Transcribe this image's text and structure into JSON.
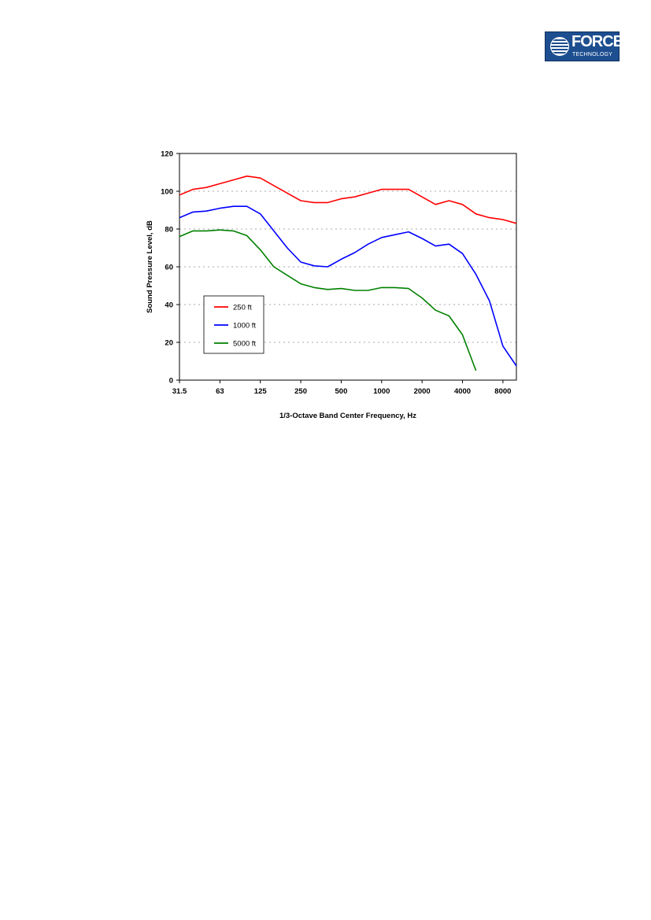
{
  "logo": {
    "word": "FORCE",
    "sub": "TECHNOLOGY"
  },
  "chart_data": {
    "type": "line",
    "xlabel": "1/3-Octave Band Center Frequency, Hz",
    "ylabel": "Sound Pressure Level, dB",
    "ylim": [
      0,
      120
    ],
    "yticks": [
      "0",
      "20",
      "40",
      "60",
      "80",
      "100",
      "120"
    ],
    "xticks": [
      "31.5",
      "63",
      "125",
      "250",
      "500",
      "1000",
      "2000",
      "4000",
      "8000"
    ],
    "x_scale": "log",
    "grid": "horizontal dashed",
    "legend_position": "lower-left",
    "x": [
      31.5,
      40,
      50,
      63,
      80,
      100,
      125,
      160,
      200,
      250,
      315,
      400,
      500,
      630,
      800,
      1000,
      1250,
      1600,
      2000,
      2500,
      3150,
      4000,
      5000,
      6300,
      8000,
      10000
    ],
    "series": [
      {
        "name": "250 ft",
        "color": "#ff0000",
        "values": [
          98,
          101,
          102,
          104,
          106,
          108,
          107,
          103,
          99,
          95,
          94,
          94,
          96,
          97,
          99,
          101,
          101,
          101,
          97,
          93,
          95,
          93,
          88,
          86,
          85,
          83
        ]
      },
      {
        "name": "1000 ft",
        "color": "#0000ff",
        "values": [
          86,
          89,
          89.5,
          91,
          92,
          92,
          88,
          79,
          70,
          62.5,
          60.5,
          60,
          64,
          67.5,
          72,
          75.5,
          77,
          78.5,
          75,
          71,
          72,
          67,
          56,
          42,
          18,
          7.5
        ]
      },
      {
        "name": "5000 ft",
        "color": "#008000",
        "values": [
          76,
          79,
          79,
          79.5,
          79,
          76.5,
          69,
          60,
          55.5,
          51,
          49,
          48,
          48.5,
          47.5,
          47.5,
          49,
          49,
          48.5,
          43.5,
          37,
          34,
          24,
          5,
          null,
          null,
          null
        ]
      }
    ]
  }
}
